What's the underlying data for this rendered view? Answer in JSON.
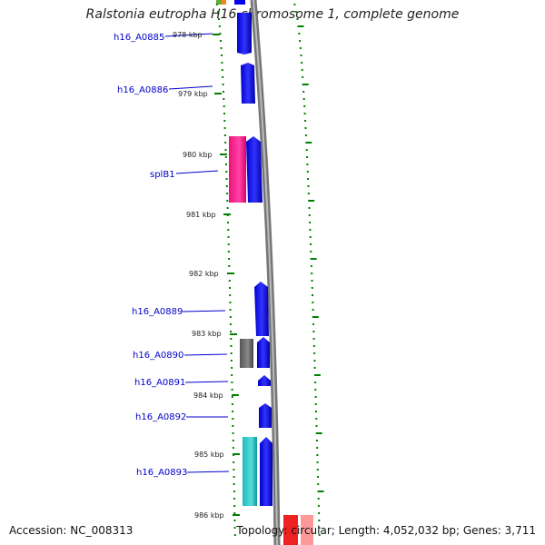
{
  "title": "Ralstonia eutropha H16 chromosome 1, complete genome",
  "accession": "Accession: NC_008313",
  "topology": "Topology: circular; Length: 4,052,032 bp; Genes: 3,711",
  "scale_labels": [
    "978 kbp",
    "979 kbp",
    "980 kbp",
    "981 kbp",
    "982 kbp",
    "983 kbp",
    "984 kbp",
    "985 kbp",
    "986 kbp"
  ],
  "gene_labels": [
    "h16_A0885",
    "h16_A0886",
    "splB1",
    "h16_A0889",
    "h16_A0890",
    "h16_A0891",
    "h16_A0892",
    "h16_A0893"
  ],
  "colors": {
    "cds": "#0000ff",
    "highlight_pink": "#ff2288",
    "gray_gene": "#666666",
    "teal_gene": "#33cccc",
    "tick": "#008000",
    "backbone": "#888888",
    "label": "#0000cc"
  }
}
